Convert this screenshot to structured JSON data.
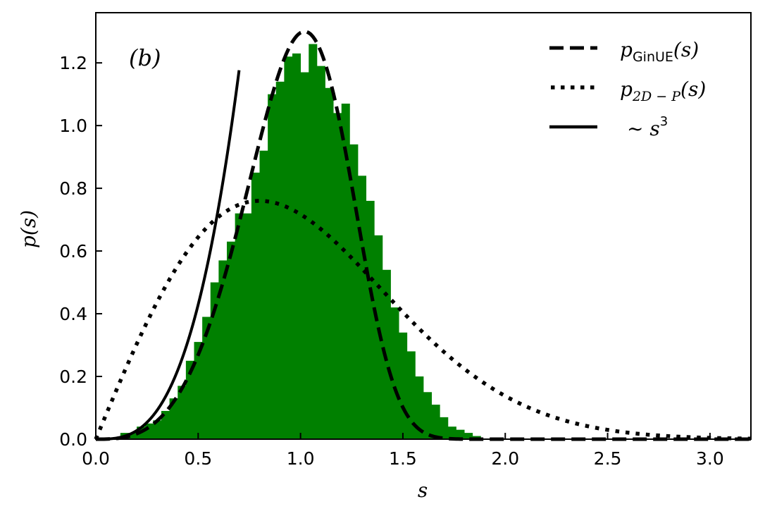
{
  "chart_data": {
    "type": "bar",
    "panel_label": "(b)",
    "xlabel": "s",
    "ylabel": "p(s)",
    "xlim": [
      0.0,
      3.2
    ],
    "ylim": [
      0.0,
      1.36
    ],
    "xticks": [
      "0.0",
      "0.5",
      "1.0",
      "1.5",
      "2.0",
      "2.5",
      "3.0"
    ],
    "yticks": [
      "0.0",
      "0.2",
      "0.4",
      "0.6",
      "0.8",
      "1.0",
      "1.2"
    ],
    "grid": false,
    "legend_position": "top-right",
    "colors": {
      "histogram": "#008000",
      "lines": "#000000"
    },
    "histogram": {
      "bin_width": 0.04,
      "bin_start": 0.0,
      "values": [
        0.0,
        0.0,
        0.0,
        0.02,
        0.02,
        0.04,
        0.05,
        0.06,
        0.09,
        0.13,
        0.17,
        0.25,
        0.31,
        0.39,
        0.5,
        0.57,
        0.63,
        0.72,
        0.72,
        0.85,
        0.92,
        1.1,
        1.14,
        1.22,
        1.23,
        1.17,
        1.26,
        1.19,
        1.12,
        1.04,
        1.07,
        0.94,
        0.84,
        0.76,
        0.65,
        0.54,
        0.42,
        0.34,
        0.28,
        0.2,
        0.15,
        0.11,
        0.07,
        0.04,
        0.03,
        0.02,
        0.01,
        0.0,
        0.0,
        0.0
      ]
    },
    "series": [
      {
        "name": "p_GinUE(s)",
        "label_main": "p",
        "label_sub": "GinUE",
        "label_tail": "(s)",
        "style": "dashed",
        "function": "ginue"
      },
      {
        "name": "p_2D-P(s)",
        "label_main": "p",
        "label_sub": "2D − P",
        "label_tail": "(s)",
        "style": "dotted",
        "function": "poisson2d"
      },
      {
        "name": "~ s^3",
        "label_main": "~ s",
        "label_sup": "3",
        "style": "solid",
        "function": "cubic",
        "x_range": [
          0.0,
          0.7
        ]
      }
    ]
  }
}
